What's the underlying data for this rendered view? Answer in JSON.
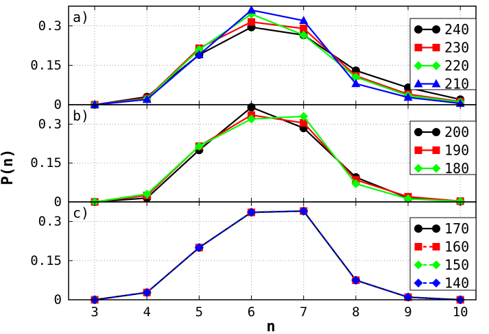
{
  "chart_data": [
    {
      "type": "line",
      "panel_label": "a)",
      "x": [
        3,
        4,
        5,
        6,
        7,
        8,
        9,
        10
      ],
      "xlim": [
        2.5,
        10.3
      ],
      "ylim": [
        0,
        0.375
      ],
      "yticks": [
        "0",
        "0.15",
        "0.3"
      ],
      "ytick_values": [
        0,
        0.15,
        0.3
      ],
      "grid": true,
      "legend_position": "right",
      "series": [
        {
          "name": "240",
          "color": "#000000",
          "marker": "circle",
          "dashed": false,
          "values": [
            0.0,
            0.03,
            0.19,
            0.295,
            0.265,
            0.13,
            0.065,
            0.02
          ]
        },
        {
          "name": "230",
          "color": "#ff0000",
          "marker": "square",
          "dashed": false,
          "values": [
            0.0,
            0.025,
            0.215,
            0.315,
            0.29,
            0.11,
            0.04,
            0.012
          ]
        },
        {
          "name": "220",
          "color": "#00ff00",
          "marker": "diamond",
          "dashed": false,
          "values": [
            0.0,
            0.022,
            0.21,
            0.345,
            0.265,
            0.105,
            0.035,
            0.01
          ]
        },
        {
          "name": "210",
          "color": "#0000ff",
          "marker": "triangle",
          "dashed": false,
          "values": [
            0.0,
            0.02,
            0.19,
            0.36,
            0.32,
            0.08,
            0.028,
            0.005
          ]
        }
      ]
    },
    {
      "type": "line",
      "panel_label": "b)",
      "x": [
        3,
        4,
        5,
        6,
        7,
        8,
        9,
        10
      ],
      "xlim": [
        2.5,
        10.3
      ],
      "ylim": [
        0,
        0.375
      ],
      "yticks": [
        "0",
        "0.15",
        "0.3"
      ],
      "ytick_values": [
        0,
        0.15,
        0.3
      ],
      "grid": true,
      "legend_position": "right",
      "series": [
        {
          "name": "200",
          "color": "#000000",
          "marker": "circle",
          "dashed": false,
          "values": [
            0.0,
            0.015,
            0.2,
            0.365,
            0.285,
            0.095,
            0.015,
            0.002
          ]
        },
        {
          "name": "190",
          "color": "#ff0000",
          "marker": "square",
          "dashed": false,
          "values": [
            0.0,
            0.025,
            0.215,
            0.335,
            0.305,
            0.085,
            0.02,
            0.003
          ]
        },
        {
          "name": "180",
          "color": "#00ff00",
          "marker": "diamond",
          "dashed": false,
          "values": [
            0.0,
            0.03,
            0.215,
            0.32,
            0.33,
            0.07,
            0.012,
            0.002
          ]
        }
      ]
    },
    {
      "type": "line",
      "panel_label": "c)",
      "x": [
        3,
        4,
        5,
        6,
        7,
        8,
        9,
        10
      ],
      "xlim": [
        2.5,
        10.3
      ],
      "ylim": [
        0,
        0.375
      ],
      "xticks": [
        "3",
        "4",
        "5",
        "6",
        "7",
        "8",
        "9",
        "10"
      ],
      "yticks": [
        "0",
        "0.15",
        "0.3"
      ],
      "ytick_values": [
        0,
        0.15,
        0.3
      ],
      "grid": true,
      "legend_position": "right",
      "series": [
        {
          "name": "170",
          "color": "#000000",
          "marker": "circle",
          "dashed": false,
          "values": [
            0.0,
            0.028,
            0.2,
            0.335,
            0.34,
            0.075,
            0.01,
            0.0
          ]
        },
        {
          "name": "160",
          "color": "#ff0000",
          "marker": "square",
          "dashed": true,
          "values": [
            0.0,
            0.028,
            0.2,
            0.335,
            0.34,
            0.075,
            0.01,
            0.0
          ]
        },
        {
          "name": "150",
          "color": "#00ff00",
          "marker": "diamond",
          "dashed": true,
          "values": [
            0.0,
            0.028,
            0.2,
            0.335,
            0.34,
            0.075,
            0.01,
            0.0
          ]
        },
        {
          "name": "140",
          "color": "#0000ff",
          "marker": "diamond",
          "dashed": true,
          "values": [
            0.0,
            0.028,
            0.2,
            0.335,
            0.34,
            0.075,
            0.01,
            0.0
          ]
        }
      ]
    }
  ],
  "axes": {
    "xlabel": "n",
    "ylabel": "P(n)"
  }
}
